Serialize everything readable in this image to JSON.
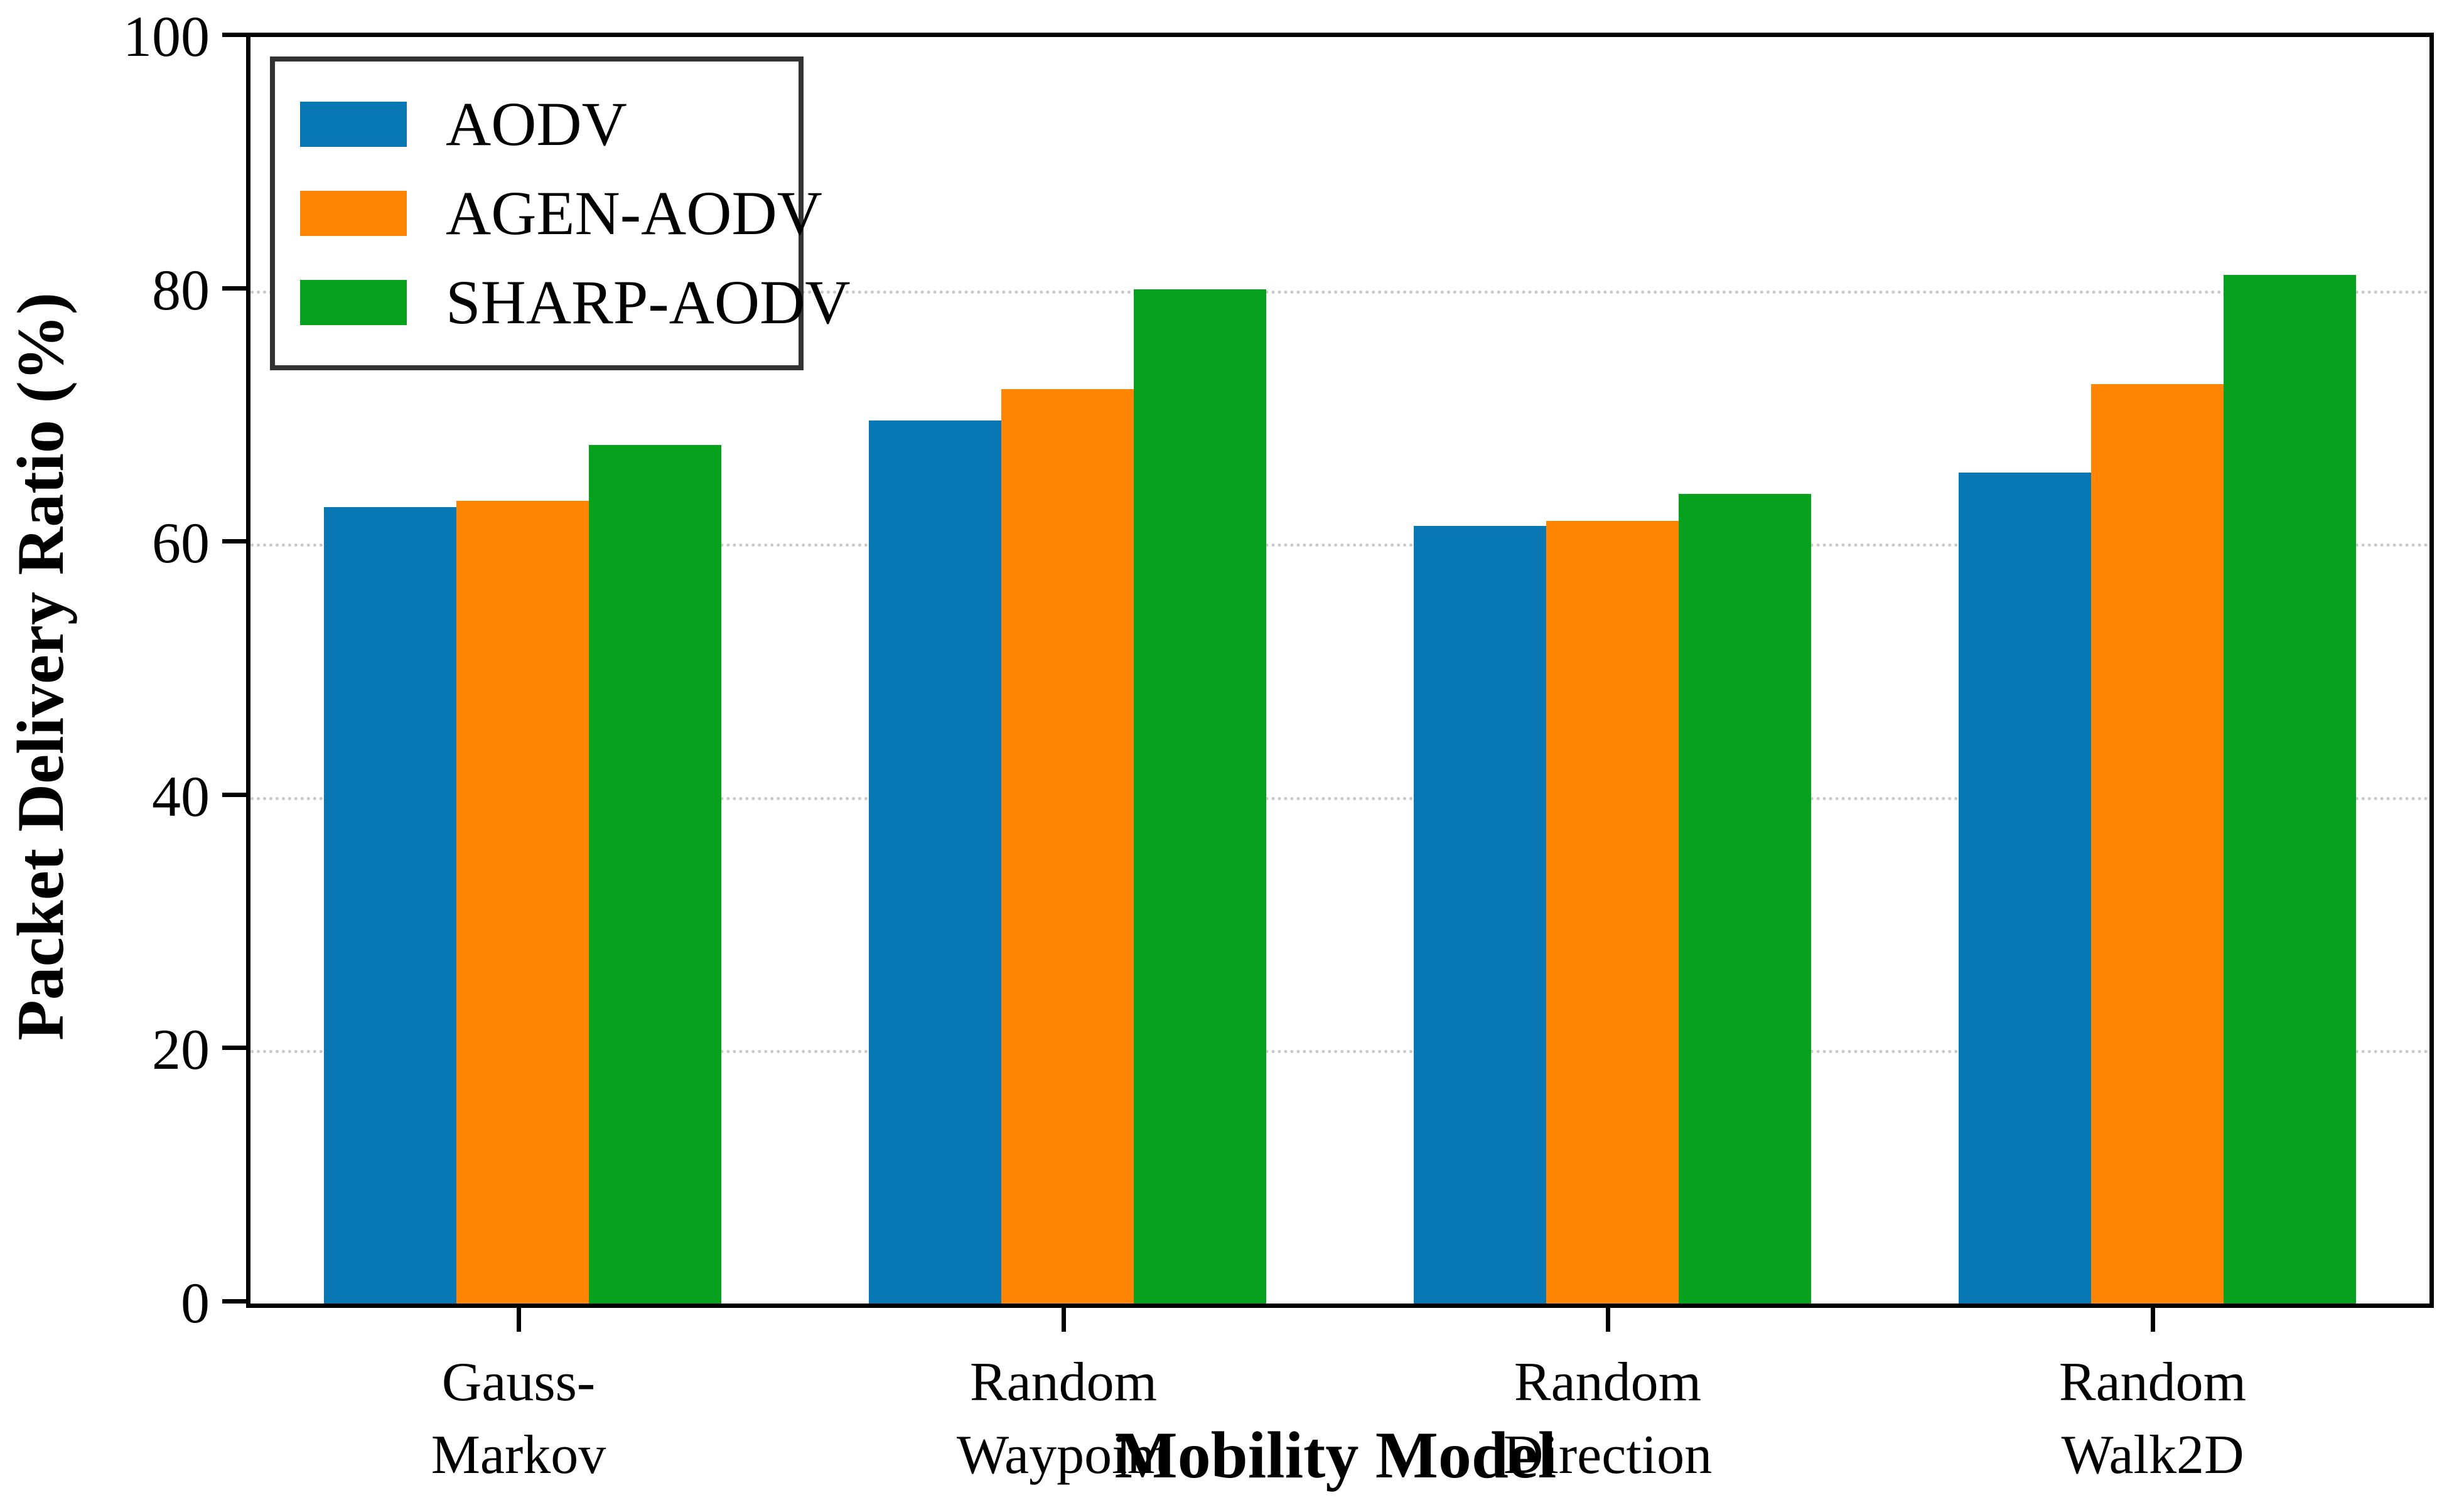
{
  "figure": {
    "background": "#ffffff",
    "axes_edge_color": "#000000",
    "grid_color": "#c9c9c9"
  },
  "chart_data": {
    "type": "bar",
    "title": "",
    "xlabel": "Mobility Model",
    "ylabel": "Packet Delivery Ratio (%)",
    "ylim": [
      0,
      100
    ],
    "yticks": [
      0,
      20,
      40,
      60,
      80,
      100
    ],
    "ytick_labels": [
      "0",
      "20",
      "40",
      "60",
      "80",
      "100"
    ],
    "grid": "horizontal dotted lines at y = 20, 40, 60, 80",
    "legend_position": "upper left",
    "categories": [
      "Gauss-Markov",
      "Random Waypoint",
      "Random Direction",
      "Random Walk2D"
    ],
    "category_label_lines": [
      [
        "Gauss-",
        "Markov"
      ],
      [
        "Random",
        "Waypoint"
      ],
      [
        "Random",
        "Direction"
      ],
      [
        "Random",
        "Walk2D"
      ]
    ],
    "series": [
      {
        "name": "AODV",
        "color": "#0878b4",
        "values": [
          62.9,
          69.7,
          61.4,
          65.6
        ]
      },
      {
        "name": "AGEN-AODV",
        "color": "#ff8502",
        "values": [
          63.4,
          72.2,
          61.8,
          72.6
        ]
      },
      {
        "name": "SHARP-AODV",
        "color": "#08a11e",
        "values": [
          67.8,
          80.1,
          63.9,
          81.2
        ]
      }
    ]
  }
}
